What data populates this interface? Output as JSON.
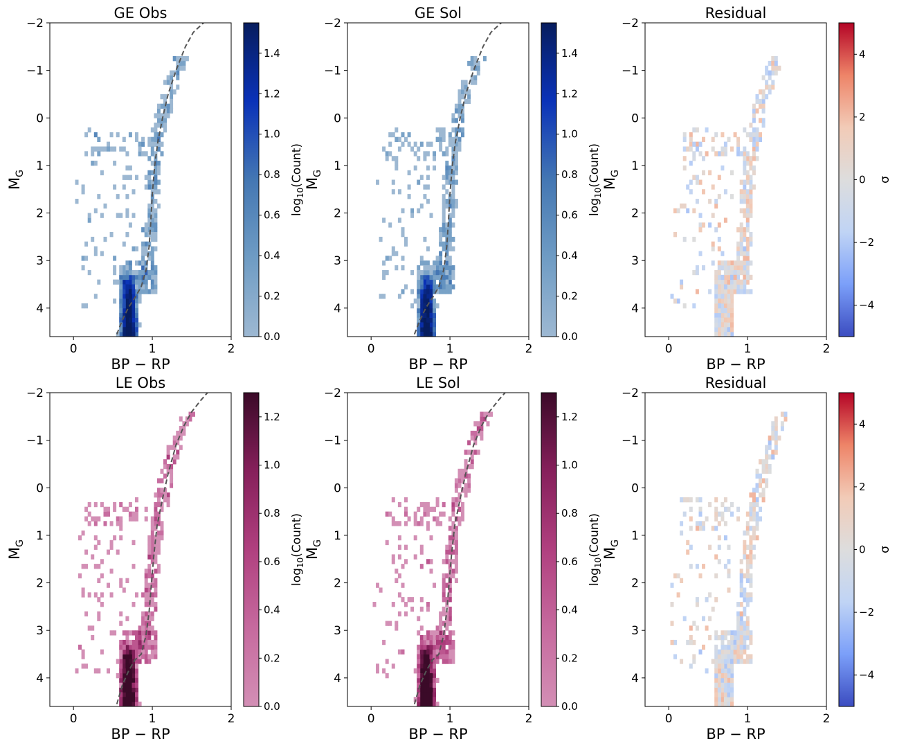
{
  "palette": {
    "blue_ramp": [
      "#9db8d2",
      "#6f9cc4",
      "#4477b3",
      "#0a32b8",
      "#071d5e"
    ],
    "pink_ramp": [
      "#d38fb5",
      "#c66a9e",
      "#b0407f",
      "#86205b",
      "#3b0a28"
    ],
    "diverging": [
      "#3b4cc0",
      "#7b9ff9",
      "#c0d4f5",
      "#dddddd",
      "#f2cbb7",
      "#ee8468",
      "#b40426"
    ],
    "isochrone": "#555555"
  },
  "figure": {
    "x_label": "BP − RP",
    "y_label": "M",
    "y_label_sub": "G",
    "x_ticks": [
      "0",
      "1",
      "2"
    ],
    "y_ticks": [
      "−2",
      "−1",
      "0",
      "1",
      "2",
      "3",
      "4"
    ],
    "cb_count_label": "log",
    "cb_count_sub": "10",
    "cb_count_tail": "(Count)",
    "cb_sigma_label": "σ"
  },
  "chart_data": [
    {
      "id": "ge_obs",
      "type": "heatmap",
      "title": "GE Obs",
      "xlim": [
        -0.3,
        2.0
      ],
      "ylim": [
        4.6,
        -2.0
      ],
      "xlabel": "BP − RP",
      "ylabel": "M_G",
      "colormap": "blue",
      "colorbar": {
        "label": "log10(Count)",
        "range": [
          0.0,
          1.55
        ],
        "ticks": [
          "0.0",
          "0.2",
          "0.4",
          "0.6",
          "0.8",
          "1.0",
          "1.2",
          "1.4"
        ]
      }
    },
    {
      "id": "ge_sol",
      "type": "heatmap",
      "title": "GE Sol",
      "xlim": [
        -0.3,
        2.0
      ],
      "ylim": [
        4.6,
        -2.0
      ],
      "xlabel": "BP − RP",
      "ylabel": "M_G",
      "colormap": "blue",
      "colorbar": {
        "label": "log10(Count)",
        "range": [
          0.0,
          1.55
        ],
        "ticks": [
          "0.0",
          "0.2",
          "0.4",
          "0.6",
          "0.8",
          "1.0",
          "1.2",
          "1.4"
        ]
      }
    },
    {
      "id": "ge_res",
      "type": "heatmap",
      "title": "Residual",
      "xlim": [
        -0.3,
        2.0
      ],
      "ylim": [
        4.6,
        -2.0
      ],
      "xlabel": "BP − RP",
      "ylabel": "M_G",
      "colormap": "diverging",
      "colorbar": {
        "label": "σ",
        "range": [
          -5,
          5
        ],
        "ticks": [
          "−4",
          "−2",
          "0",
          "2",
          "4"
        ]
      }
    },
    {
      "id": "le_obs",
      "type": "heatmap",
      "title": "LE Obs",
      "xlim": [
        -0.3,
        2.0
      ],
      "ylim": [
        4.6,
        -2.0
      ],
      "xlabel": "BP − RP",
      "ylabel": "M_G",
      "colormap": "pink",
      "colorbar": {
        "label": "log10(Count)",
        "range": [
          0.0,
          1.3
        ],
        "ticks": [
          "0.0",
          "0.2",
          "0.4",
          "0.6",
          "0.8",
          "1.0",
          "1.2"
        ]
      }
    },
    {
      "id": "le_sol",
      "type": "heatmap",
      "title": "LE Sol",
      "xlim": [
        -0.3,
        2.0
      ],
      "ylim": [
        4.6,
        -2.0
      ],
      "xlabel": "BP − RP",
      "ylabel": "M_G",
      "colormap": "pink",
      "colorbar": {
        "label": "log10(Count)",
        "range": [
          0.0,
          1.3
        ],
        "ticks": [
          "0.0",
          "0.2",
          "0.4",
          "0.6",
          "0.8",
          "1.0",
          "1.2"
        ]
      }
    },
    {
      "id": "le_res",
      "type": "heatmap",
      "title": "Residual",
      "xlim": [
        -0.3,
        2.0
      ],
      "ylim": [
        4.6,
        -2.0
      ],
      "xlabel": "BP − RP",
      "ylabel": "M_G",
      "colormap": "diverging",
      "colorbar": {
        "label": "σ",
        "range": [
          -5,
          5
        ],
        "ticks": [
          "−4",
          "−2",
          "0",
          "2",
          "4"
        ]
      }
    }
  ],
  "isochrone": {
    "ge": {
      "x": [
        0.55,
        0.62,
        0.7,
        0.78,
        0.86,
        0.92,
        0.96,
        0.98,
        1.0,
        1.03,
        1.07,
        1.13,
        1.2,
        1.3,
        1.42,
        1.52,
        1.65
      ],
      "y": [
        4.55,
        4.25,
        3.98,
        3.78,
        3.55,
        3.2,
        2.7,
        2.2,
        1.6,
        1.0,
        0.5,
        0.0,
        -0.5,
        -1.0,
        -1.5,
        -1.8,
        -2.0
      ]
    },
    "le": {
      "x": [
        0.55,
        0.62,
        0.7,
        0.78,
        0.86,
        0.92,
        0.96,
        0.99,
        1.02,
        1.06,
        1.12,
        1.2,
        1.3,
        1.4,
        1.5,
        1.62,
        1.7
      ],
      "y": [
        4.55,
        4.15,
        3.85,
        3.62,
        3.5,
        3.1,
        2.6,
        2.0,
        1.4,
        0.8,
        0.3,
        -0.3,
        -0.9,
        -1.3,
        -1.6,
        -1.85,
        -2.0
      ]
    }
  }
}
